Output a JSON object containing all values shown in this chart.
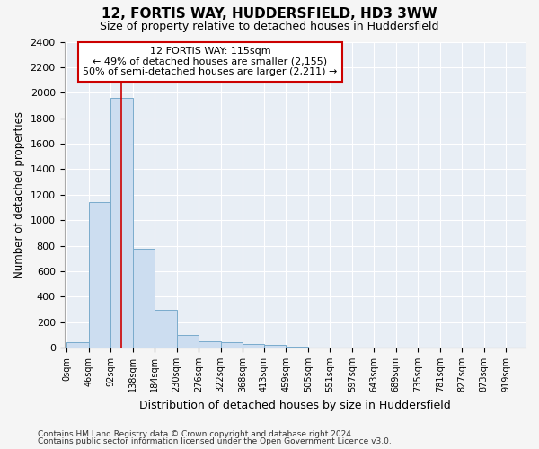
{
  "title1": "12, FORTIS WAY, HUDDERSFIELD, HD3 3WW",
  "title2": "Size of property relative to detached houses in Huddersfield",
  "xlabel": "Distribution of detached houses by size in Huddersfield",
  "ylabel": "Number of detached properties",
  "footnote1": "Contains HM Land Registry data © Crown copyright and database right 2024.",
  "footnote2": "Contains public sector information licensed under the Open Government Licence v3.0.",
  "annotation_line1": "12 FORTIS WAY: 115sqm",
  "annotation_line2": "← 49% of detached houses are smaller (2,155)",
  "annotation_line3": "50% of semi-detached houses are larger (2,211) →",
  "bar_left_edges": [
    0,
    46,
    92,
    138,
    184,
    230,
    276,
    322,
    368,
    413,
    459,
    505,
    551,
    597,
    643,
    689,
    735,
    781,
    827,
    873
  ],
  "bar_heights": [
    40,
    1140,
    1960,
    775,
    295,
    100,
    50,
    45,
    30,
    25,
    5,
    0,
    0,
    0,
    0,
    0,
    0,
    0,
    0,
    0
  ],
  "bin_width": 46,
  "bar_color": "#ccddf0",
  "bar_edge_color": "#7aabcc",
  "red_line_x": 115,
  "ylim": [
    0,
    2400
  ],
  "xlim": [
    -5,
    960
  ],
  "tick_positions": [
    0,
    46,
    92,
    138,
    184,
    230,
    276,
    322,
    368,
    413,
    459,
    505,
    551,
    597,
    643,
    689,
    735,
    781,
    827,
    873,
    919
  ],
  "tick_labels": [
    "0sqm",
    "46sqm",
    "92sqm",
    "138sqm",
    "184sqm",
    "230sqm",
    "276sqm",
    "322sqm",
    "368sqm",
    "413sqm",
    "459sqm",
    "505sqm",
    "551sqm",
    "597sqm",
    "643sqm",
    "689sqm",
    "735sqm",
    "781sqm",
    "827sqm",
    "873sqm",
    "919sqm"
  ],
  "ytick_positions": [
    0,
    200,
    400,
    600,
    800,
    1000,
    1200,
    1400,
    1600,
    1800,
    2000,
    2200,
    2400
  ],
  "fig_bg_color": "#f5f5f5",
  "plot_bg_color": "#e8eef5"
}
